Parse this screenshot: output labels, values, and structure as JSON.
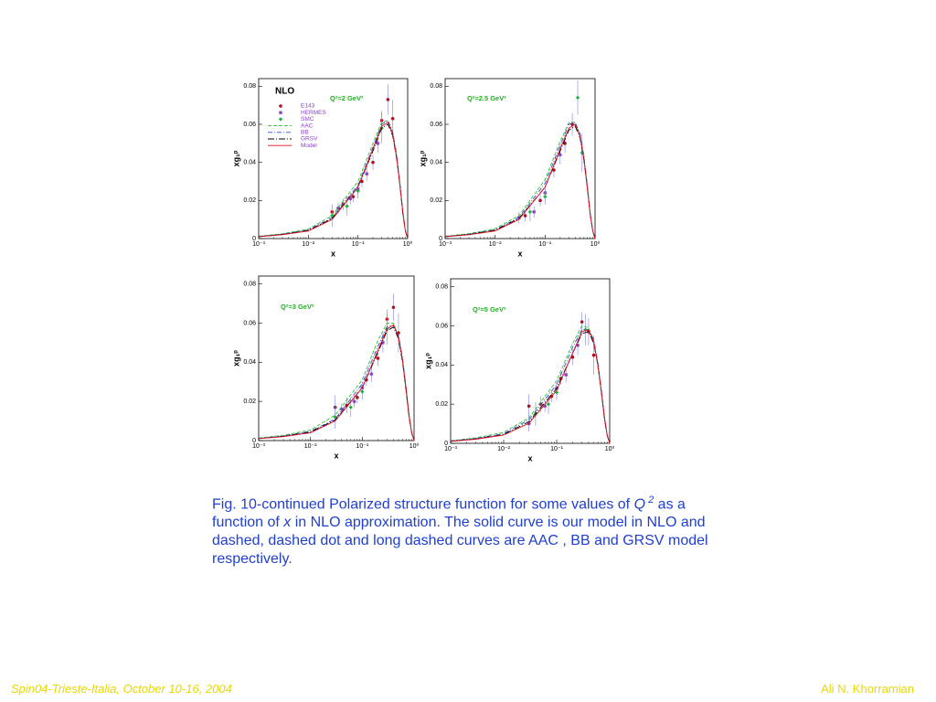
{
  "chart_data": [
    {
      "type": "line",
      "title": "Q²=2 GeV²",
      "annotation": "NLO",
      "xlabel": "x",
      "ylabel": "xg₁ᵖ",
      "xscale": "log",
      "legend": "upper left",
      "xlim": [
        0.001,
        1
      ],
      "ylim": [
        0,
        0.084
      ],
      "xticks": [
        {
          "value": 0.001,
          "label": "10⁻³"
        },
        {
          "value": 0.01,
          "label": "10⁻²"
        },
        {
          "value": 0.1,
          "label": "10⁻¹"
        },
        {
          "value": 1,
          "label": "10⁰"
        }
      ],
      "yticks": [
        0,
        0.02,
        0.04,
        0.06,
        0.08
      ],
      "x": [
        0.001,
        0.003,
        0.01,
        0.03,
        0.1,
        0.2,
        0.3,
        0.4,
        0.5,
        0.6,
        0.7,
        0.8,
        0.9,
        1
      ],
      "series": [
        {
          "name": "E143",
          "color": "#b01020",
          "style": "circle",
          "x": [
            0.03,
            0.05,
            0.08,
            0.12,
            0.2,
            0.3,
            0.4,
            0.5
          ],
          "values": [
            0.014,
            0.018,
            0.022,
            0.03,
            0.04,
            0.062,
            0.073,
            0.063
          ],
          "errors": [
            0.004,
            0.003,
            0.003,
            0.003,
            0.004,
            0.005,
            0.008,
            0.01
          ]
        },
        {
          "name": "HERMES",
          "color": "#8040c0",
          "style": "star",
          "x": [
            0.04,
            0.07,
            0.1,
            0.15,
            0.25
          ],
          "values": [
            0.016,
            0.021,
            0.026,
            0.034,
            0.05
          ],
          "errors": [
            0.003,
            0.003,
            0.003,
            0.004,
            0.005
          ]
        },
        {
          "name": "SMC",
          "color": "#20b040",
          "style": "diamond",
          "x": [
            0.03,
            0.06,
            0.1,
            0.3
          ],
          "values": [
            0.012,
            0.017,
            0.025,
            0.058
          ],
          "errors": [
            0.006,
            0.005,
            0.004,
            0.008
          ]
        },
        {
          "name": "AAC",
          "color": "#30c030",
          "style": "dashed",
          "values": [
            0.0012,
            0.0025,
            0.005,
            0.012,
            0.03,
            0.05,
            0.061,
            0.062,
            0.055,
            0.042,
            0.027,
            0.013,
            0.004,
            0
          ]
        },
        {
          "name": "BB",
          "color": "#3050d0",
          "style": "dashdot",
          "values": [
            0.0011,
            0.0023,
            0.0045,
            0.011,
            0.028,
            0.048,
            0.06,
            0.062,
            0.056,
            0.044,
            0.029,
            0.014,
            0.004,
            0
          ]
        },
        {
          "name": "GRSV",
          "color": "#000000",
          "style": "longdash",
          "values": [
            0.001,
            0.0022,
            0.0043,
            0.0105,
            0.027,
            0.046,
            0.058,
            0.06,
            0.054,
            0.042,
            0.028,
            0.013,
            0.004,
            0
          ]
        },
        {
          "name": "Model",
          "color": "#e01020",
          "style": "solid",
          "values": [
            0.001,
            0.002,
            0.004,
            0.01,
            0.027,
            0.047,
            0.059,
            0.061,
            0.055,
            0.043,
            0.028,
            0.014,
            0.004,
            0
          ]
        }
      ]
    },
    {
      "type": "line",
      "title": "Q²=2.5 GeV²",
      "xlabel": "x",
      "ylabel": "xg₁ᵖ",
      "xscale": "log",
      "xlim": [
        0.001,
        1
      ],
      "ylim": [
        0,
        0.084
      ],
      "xticks": [
        {
          "value": 0.001,
          "label": "10⁻³"
        },
        {
          "value": 0.01,
          "label": "10⁻²"
        },
        {
          "value": 0.1,
          "label": "10⁻¹"
        },
        {
          "value": 1,
          "label": "10⁰"
        }
      ],
      "yticks": [
        0,
        0.02,
        0.04,
        0.06,
        0.08
      ],
      "x": [
        0.001,
        0.003,
        0.01,
        0.03,
        0.1,
        0.2,
        0.3,
        0.4,
        0.5,
        0.6,
        0.7,
        0.8,
        0.9,
        1
      ],
      "series": [
        {
          "color": "#b01020",
          "style": "circle",
          "x": [
            0.04,
            0.08,
            0.15,
            0.25,
            0.35
          ],
          "values": [
            0.012,
            0.02,
            0.036,
            0.05,
            0.06
          ],
          "errors": [
            0.003,
            0.003,
            0.004,
            0.005,
            0.006
          ]
        },
        {
          "color": "#8040c0",
          "style": "star",
          "x": [
            0.03,
            0.06,
            0.1,
            0.2
          ],
          "values": [
            0.011,
            0.014,
            0.024,
            0.044
          ],
          "errors": [
            0.003,
            0.003,
            0.004,
            0.005
          ]
        },
        {
          "color": "#20b040",
          "style": "diamond",
          "x": [
            0.05,
            0.1,
            0.45,
            0.55
          ],
          "values": [
            0.014,
            0.022,
            0.074,
            0.045
          ],
          "errors": [
            0.005,
            0.004,
            0.009,
            0.01
          ]
        },
        {
          "color": "#30c030",
          "style": "dashed",
          "values": [
            0.0012,
            0.0026,
            0.0052,
            0.012,
            0.031,
            0.051,
            0.061,
            0.061,
            0.054,
            0.041,
            0.026,
            0.012,
            0.004,
            0
          ]
        },
        {
          "color": "#3050d0",
          "style": "dashdot",
          "values": [
            0.0011,
            0.0023,
            0.0046,
            0.011,
            0.029,
            0.049,
            0.06,
            0.061,
            0.055,
            0.043,
            0.028,
            0.013,
            0.004,
            0
          ]
        },
        {
          "color": "#000000",
          "style": "longdash",
          "values": [
            0.001,
            0.0022,
            0.0044,
            0.0105,
            0.027,
            0.046,
            0.057,
            0.059,
            0.053,
            0.041,
            0.027,
            0.013,
            0.004,
            0
          ]
        },
        {
          "color": "#e01020",
          "style": "solid",
          "values": [
            0.001,
            0.002,
            0.004,
            0.01,
            0.027,
            0.047,
            0.058,
            0.06,
            0.054,
            0.042,
            0.027,
            0.013,
            0.004,
            0
          ]
        }
      ]
    },
    {
      "type": "line",
      "title": "Q²=3 GeV²",
      "xlabel": "x",
      "ylabel": "xg₁ᵖ",
      "xscale": "log",
      "xlim": [
        0.001,
        1
      ],
      "ylim": [
        0,
        0.084
      ],
      "xticks": [
        {
          "value": 0.001,
          "label": "10⁻³"
        },
        {
          "value": 0.01,
          "label": "10⁻²"
        },
        {
          "value": 0.1,
          "label": "10⁻¹"
        },
        {
          "value": 1,
          "label": "10⁰"
        }
      ],
      "yticks": [
        0,
        0.02,
        0.04,
        0.06,
        0.08
      ],
      "x": [
        0.001,
        0.003,
        0.01,
        0.03,
        0.1,
        0.2,
        0.3,
        0.4,
        0.5,
        0.6,
        0.7,
        0.8,
        0.9,
        1
      ],
      "series": [
        {
          "color": "#b01020",
          "style": "circle",
          "x": [
            0.03,
            0.05,
            0.08,
            0.12,
            0.2,
            0.3,
            0.4,
            0.5
          ],
          "values": [
            0.017,
            0.018,
            0.022,
            0.031,
            0.042,
            0.062,
            0.068,
            0.055
          ],
          "errors": [
            0.006,
            0.004,
            0.003,
            0.003,
            0.004,
            0.005,
            0.007,
            0.01
          ]
        },
        {
          "color": "#8040c0",
          "style": "star",
          "x": [
            0.04,
            0.07,
            0.1,
            0.15,
            0.25
          ],
          "values": [
            0.016,
            0.02,
            0.027,
            0.034,
            0.05
          ],
          "errors": [
            0.003,
            0.003,
            0.003,
            0.004,
            0.005
          ]
        },
        {
          "color": "#20b040",
          "style": "diamond",
          "x": [
            0.03,
            0.06,
            0.1,
            0.3
          ],
          "values": [
            0.012,
            0.017,
            0.025,
            0.057
          ],
          "errors": [
            0.006,
            0.005,
            0.004,
            0.008
          ]
        },
        {
          "color": "#30c030",
          "style": "dashed",
          "values": [
            0.0013,
            0.0027,
            0.0054,
            0.013,
            0.031,
            0.051,
            0.06,
            0.06,
            0.053,
            0.04,
            0.025,
            0.012,
            0.004,
            0
          ]
        },
        {
          "color": "#3050d0",
          "style": "dashdot",
          "values": [
            0.0011,
            0.0024,
            0.0047,
            0.011,
            0.029,
            0.048,
            0.058,
            0.059,
            0.054,
            0.042,
            0.027,
            0.013,
            0.004,
            0
          ]
        },
        {
          "color": "#000000",
          "style": "longdash",
          "values": [
            0.001,
            0.0022,
            0.0044,
            0.0105,
            0.027,
            0.045,
            0.056,
            0.058,
            0.052,
            0.04,
            0.026,
            0.012,
            0.004,
            0
          ]
        },
        {
          "color": "#e01020",
          "style": "solid",
          "values": [
            0.001,
            0.002,
            0.004,
            0.01,
            0.027,
            0.046,
            0.057,
            0.059,
            0.053,
            0.041,
            0.027,
            0.013,
            0.004,
            0
          ]
        }
      ]
    },
    {
      "type": "line",
      "title": "Q²=5 GeV²",
      "xlabel": "x",
      "ylabel": "xg₁ᵖ",
      "xscale": "log",
      "xlim": [
        0.001,
        1
      ],
      "ylim": [
        0,
        0.084
      ],
      "xticks": [
        {
          "value": 0.001,
          "label": "10⁻³"
        },
        {
          "value": 0.01,
          "label": "10⁻²"
        },
        {
          "value": 0.1,
          "label": "10⁻¹"
        },
        {
          "value": 1,
          "label": "10⁰"
        }
      ],
      "yticks": [
        0,
        0.02,
        0.04,
        0.06,
        0.08
      ],
      "x": [
        0.001,
        0.003,
        0.01,
        0.03,
        0.1,
        0.2,
        0.3,
        0.4,
        0.5,
        0.6,
        0.7,
        0.8,
        0.9,
        1
      ],
      "series": [
        {
          "color": "#b01020",
          "style": "circle",
          "x": [
            0.03,
            0.05,
            0.08,
            0.12,
            0.2,
            0.3,
            0.4,
            0.5
          ],
          "values": [
            0.019,
            0.02,
            0.024,
            0.033,
            0.044,
            0.062,
            0.057,
            0.045
          ],
          "errors": [
            0.006,
            0.004,
            0.003,
            0.003,
            0.004,
            0.005,
            0.007,
            0.01
          ]
        },
        {
          "color": "#8040c0",
          "style": "star",
          "x": [
            0.03,
            0.06,
            0.1,
            0.15,
            0.25
          ],
          "values": [
            0.01,
            0.019,
            0.028,
            0.035,
            0.05
          ],
          "errors": [
            0.004,
            0.003,
            0.003,
            0.004,
            0.005
          ]
        },
        {
          "color": "#20b040",
          "style": "diamond",
          "x": [
            0.04,
            0.07,
            0.1,
            0.35
          ],
          "values": [
            0.015,
            0.02,
            0.026,
            0.058
          ],
          "errors": [
            0.006,
            0.005,
            0.004,
            0.008
          ]
        },
        {
          "color": "#30c030",
          "style": "dashed",
          "values": [
            0.0013,
            0.0028,
            0.0056,
            0.013,
            0.032,
            0.051,
            0.06,
            0.059,
            0.052,
            0.039,
            0.025,
            0.012,
            0.004,
            0
          ]
        },
        {
          "color": "#3050d0",
          "style": "dashdot",
          "values": [
            0.0012,
            0.0025,
            0.0049,
            0.012,
            0.03,
            0.049,
            0.058,
            0.058,
            0.053,
            0.041,
            0.027,
            0.013,
            0.004,
            0
          ]
        },
        {
          "color": "#000000",
          "style": "longdash",
          "values": [
            0.001,
            0.0023,
            0.0045,
            0.011,
            0.028,
            0.046,
            0.056,
            0.057,
            0.051,
            0.04,
            0.026,
            0.012,
            0.004,
            0
          ]
        },
        {
          "color": "#e01020",
          "style": "solid",
          "values": [
            0.001,
            0.0021,
            0.0042,
            0.0102,
            0.027,
            0.046,
            0.057,
            0.058,
            0.052,
            0.04,
            0.026,
            0.013,
            0.004,
            0
          ]
        }
      ]
    }
  ],
  "caption": {
    "parts": [
      "Fig. 10-continued   Polarized structure function  for some values of ",
      "Q",
      " 2",
      " as a function of ",
      "x",
      " in NLO approximation. The solid curve is our model in NLO and dashed, dashed dot and long dashed curves are AAC , BB and GRSV model respectively."
    ]
  },
  "footer": {
    "left": "Spin04-Trieste-Italia, October 10-16, 2004",
    "right": "Ali N. Khorramian"
  }
}
